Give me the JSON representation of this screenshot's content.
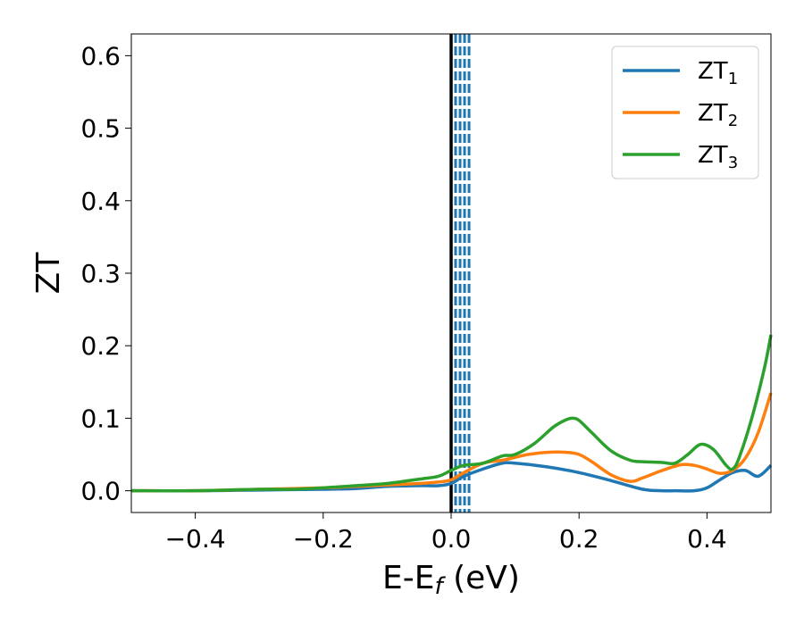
{
  "chart_data": {
    "type": "line",
    "xlabel": "E-E",
    "xlabel_sub": "f",
    "xlabel_unit": " (eV)",
    "ylabel": "ZT",
    "xlim": [
      -0.5,
      0.5
    ],
    "ylim": [
      -0.03,
      0.63
    ],
    "xticks": [
      -0.4,
      -0.2,
      0.0,
      0.2,
      0.4
    ],
    "xtick_labels": [
      "−0.4",
      "−0.2",
      "0.0",
      "0.2",
      "0.4"
    ],
    "yticks": [
      0.0,
      0.1,
      0.2,
      0.3,
      0.4,
      0.5,
      0.6
    ],
    "ytick_labels": [
      "0.0",
      "0.1",
      "0.2",
      "0.3",
      "0.4",
      "0.5",
      "0.6"
    ],
    "grid": false,
    "legend": "top-right",
    "vertical_lines": [
      {
        "x": 0.0,
        "color": "#000000",
        "style": "solid"
      },
      {
        "x": 0.007,
        "color": "#1f77b4",
        "style": "dashed"
      },
      {
        "x": 0.014,
        "color": "#1f77b4",
        "style": "dashed"
      },
      {
        "x": 0.021,
        "color": "#1f77b4",
        "style": "dashed"
      },
      {
        "x": 0.028,
        "color": "#1f77b4",
        "style": "dashed"
      }
    ],
    "series": [
      {
        "name": "ZT",
        "sub": "1",
        "color": "#1f77b4",
        "x": [
          -0.5,
          -0.4,
          -0.3,
          -0.2,
          -0.15,
          -0.1,
          -0.05,
          -0.02,
          0.0,
          0.02,
          0.05,
          0.08,
          0.1,
          0.15,
          0.2,
          0.25,
          0.3,
          0.33,
          0.35,
          0.38,
          0.4,
          0.42,
          0.44,
          0.46,
          0.48,
          0.5
        ],
        "y": [
          0.0,
          0.0,
          0.001,
          0.002,
          0.003,
          0.006,
          0.007,
          0.007,
          0.01,
          0.02,
          0.03,
          0.038,
          0.038,
          0.033,
          0.025,
          0.014,
          0.002,
          0.0,
          0.0,
          0.0,
          0.004,
          0.015,
          0.025,
          0.028,
          0.02,
          0.035
        ]
      },
      {
        "name": "ZT",
        "sub": "2",
        "color": "#ff7f0e",
        "x": [
          -0.5,
          -0.4,
          -0.3,
          -0.2,
          -0.15,
          -0.1,
          -0.05,
          -0.02,
          0.0,
          0.02,
          0.05,
          0.08,
          0.1,
          0.12,
          0.15,
          0.18,
          0.2,
          0.22,
          0.25,
          0.28,
          0.3,
          0.33,
          0.36,
          0.38,
          0.4,
          0.42,
          0.44,
          0.46,
          0.48,
          0.5
        ],
        "y": [
          0.0,
          0.0,
          0.002,
          0.004,
          0.006,
          0.008,
          0.01,
          0.012,
          0.015,
          0.025,
          0.038,
          0.042,
          0.046,
          0.05,
          0.053,
          0.053,
          0.05,
          0.04,
          0.022,
          0.013,
          0.018,
          0.028,
          0.036,
          0.035,
          0.03,
          0.024,
          0.028,
          0.045,
          0.08,
          0.135
        ]
      },
      {
        "name": "ZT",
        "sub": "3",
        "color": "#2ca02c",
        "x": [
          -0.5,
          -0.4,
          -0.3,
          -0.25,
          -0.2,
          -0.15,
          -0.1,
          -0.05,
          -0.02,
          0.0,
          0.02,
          0.05,
          0.08,
          0.1,
          0.13,
          0.16,
          0.18,
          0.19,
          0.2,
          0.22,
          0.25,
          0.28,
          0.3,
          0.33,
          0.35,
          0.37,
          0.39,
          0.41,
          0.43,
          0.44,
          0.45,
          0.47,
          0.49,
          0.5
        ],
        "y": [
          0.0,
          0.0,
          0.002,
          0.002,
          0.004,
          0.007,
          0.01,
          0.016,
          0.02,
          0.028,
          0.035,
          0.038,
          0.048,
          0.05,
          0.065,
          0.088,
          0.098,
          0.1,
          0.097,
          0.08,
          0.055,
          0.042,
          0.04,
          0.039,
          0.038,
          0.05,
          0.064,
          0.057,
          0.035,
          0.03,
          0.045,
          0.1,
          0.17,
          0.215
        ]
      }
    ]
  }
}
